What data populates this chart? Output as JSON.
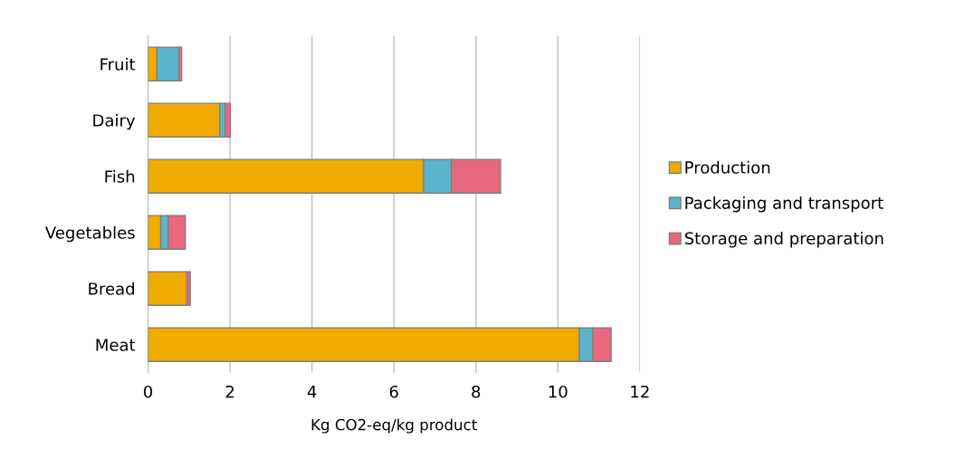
{
  "chart_data": {
    "type": "bar",
    "orientation": "horizontal",
    "stacked": true,
    "xlabel": "Kg CO2-eq/kg product",
    "categories": [
      "Fruit",
      "Dairy",
      "Fish",
      "Vegetables",
      "Bread",
      "Meat"
    ],
    "series": [
      {
        "name": "Production",
        "color": "#f0ab00",
        "values": [
          0.22,
          1.75,
          6.72,
          0.31,
          0.95,
          10.52
        ]
      },
      {
        "name": "Packaging and transport",
        "color": "#5bb4cc",
        "values": [
          0.53,
          0.13,
          0.68,
          0.18,
          null,
          0.33
        ]
      },
      {
        "name": "Storage and preparation",
        "color": "#e8697d",
        "values": [
          0.07,
          0.13,
          1.2,
          0.42,
          0.08,
          0.45
        ]
      }
    ],
    "xlim": [
      0,
      12
    ],
    "xticks": [
      0,
      2,
      4,
      6,
      8,
      10,
      12
    ],
    "grid": "x",
    "legend": "right"
  }
}
